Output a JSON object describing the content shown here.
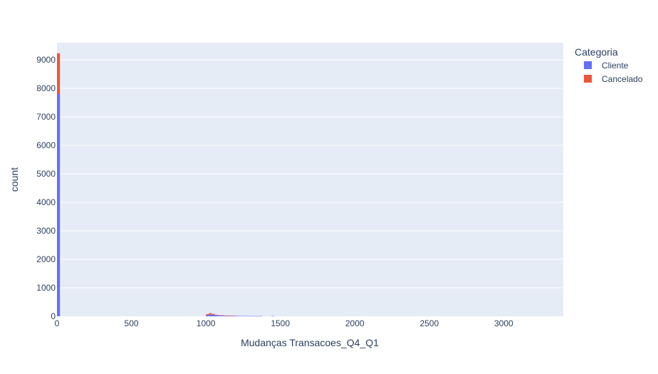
{
  "chart_data": {
    "type": "bar",
    "barmode": "stack",
    "xlabel": "Mudanças Transacoes_Q4_Q1",
    "ylabel": "count",
    "xlim": [
      0,
      3400
    ],
    "ylim": [
      0,
      9600
    ],
    "bin_width": 20,
    "x_ticks": [
      0,
      500,
      1000,
      1500,
      2000,
      2500,
      3000
    ],
    "y_ticks": [
      0,
      1000,
      2000,
      3000,
      4000,
      5000,
      6000,
      7000,
      8000,
      9000
    ],
    "legend": {
      "title": "Categoria",
      "position": "top-right"
    },
    "background_color": "#e5ecf6",
    "grid": true,
    "bin_starts": [
      0,
      1000,
      1020,
      1040,
      1060,
      1080,
      1100,
      1120,
      1140,
      1160,
      1180,
      1200,
      1220,
      1240,
      1260,
      1280,
      1300,
      1320,
      1340,
      1360,
      1440
    ],
    "series": [
      {
        "name": "Cliente",
        "color": "#636efa",
        "values": [
          7800,
          40,
          60,
          65,
          45,
          35,
          30,
          25,
          22,
          20,
          18,
          16,
          14,
          12,
          10,
          8,
          7,
          6,
          5,
          10,
          8
        ]
      },
      {
        "name": "Cancelado",
        "color": "#ef553b",
        "values": [
          1430,
          35,
          50,
          20,
          10,
          5,
          3,
          2,
          1,
          1,
          1,
          0,
          0,
          0,
          0,
          0,
          0,
          0,
          0,
          0,
          0
        ]
      }
    ]
  }
}
